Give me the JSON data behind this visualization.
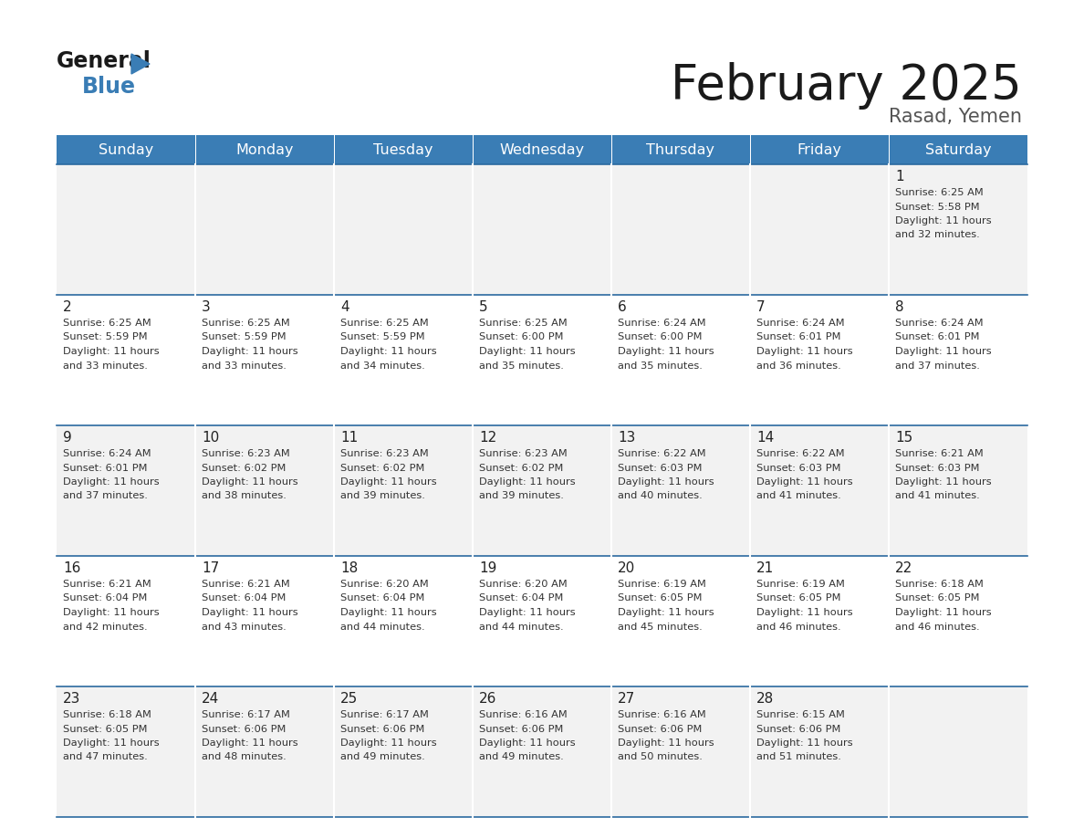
{
  "title": "February 2025",
  "subtitle": "Rasad, Yemen",
  "days_of_week": [
    "Sunday",
    "Monday",
    "Tuesday",
    "Wednesday",
    "Thursday",
    "Friday",
    "Saturday"
  ],
  "header_bg": "#3A7DB5",
  "header_text_color": "#FFFFFF",
  "border_color": "#2B6AA0",
  "day_number_color": "#222222",
  "info_text_color": "#333333",
  "title_color": "#1A1A1A",
  "subtitle_color": "#555555",
  "calendar": [
    [
      null,
      null,
      null,
      null,
      null,
      null,
      1
    ],
    [
      2,
      3,
      4,
      5,
      6,
      7,
      8
    ],
    [
      9,
      10,
      11,
      12,
      13,
      14,
      15
    ],
    [
      16,
      17,
      18,
      19,
      20,
      21,
      22
    ],
    [
      23,
      24,
      25,
      26,
      27,
      28,
      null
    ]
  ],
  "sun_data": {
    "1": {
      "rise": "6:25 AM",
      "set": "5:58 PM",
      "daylight_h": "11",
      "daylight_m": "32"
    },
    "2": {
      "rise": "6:25 AM",
      "set": "5:59 PM",
      "daylight_h": "11",
      "daylight_m": "33"
    },
    "3": {
      "rise": "6:25 AM",
      "set": "5:59 PM",
      "daylight_h": "11",
      "daylight_m": "33"
    },
    "4": {
      "rise": "6:25 AM",
      "set": "5:59 PM",
      "daylight_h": "11",
      "daylight_m": "34"
    },
    "5": {
      "rise": "6:25 AM",
      "set": "6:00 PM",
      "daylight_h": "11",
      "daylight_m": "35"
    },
    "6": {
      "rise": "6:24 AM",
      "set": "6:00 PM",
      "daylight_h": "11",
      "daylight_m": "35"
    },
    "7": {
      "rise": "6:24 AM",
      "set": "6:01 PM",
      "daylight_h": "11",
      "daylight_m": "36"
    },
    "8": {
      "rise": "6:24 AM",
      "set": "6:01 PM",
      "daylight_h": "11",
      "daylight_m": "37"
    },
    "9": {
      "rise": "6:24 AM",
      "set": "6:01 PM",
      "daylight_h": "11",
      "daylight_m": "37"
    },
    "10": {
      "rise": "6:23 AM",
      "set": "6:02 PM",
      "daylight_h": "11",
      "daylight_m": "38"
    },
    "11": {
      "rise": "6:23 AM",
      "set": "6:02 PM",
      "daylight_h": "11",
      "daylight_m": "39"
    },
    "12": {
      "rise": "6:23 AM",
      "set": "6:02 PM",
      "daylight_h": "11",
      "daylight_m": "39"
    },
    "13": {
      "rise": "6:22 AM",
      "set": "6:03 PM",
      "daylight_h": "11",
      "daylight_m": "40"
    },
    "14": {
      "rise": "6:22 AM",
      "set": "6:03 PM",
      "daylight_h": "11",
      "daylight_m": "41"
    },
    "15": {
      "rise": "6:21 AM",
      "set": "6:03 PM",
      "daylight_h": "11",
      "daylight_m": "41"
    },
    "16": {
      "rise": "6:21 AM",
      "set": "6:04 PM",
      "daylight_h": "11",
      "daylight_m": "42"
    },
    "17": {
      "rise": "6:21 AM",
      "set": "6:04 PM",
      "daylight_h": "11",
      "daylight_m": "43"
    },
    "18": {
      "rise": "6:20 AM",
      "set": "6:04 PM",
      "daylight_h": "11",
      "daylight_m": "44"
    },
    "19": {
      "rise": "6:20 AM",
      "set": "6:04 PM",
      "daylight_h": "11",
      "daylight_m": "44"
    },
    "20": {
      "rise": "6:19 AM",
      "set": "6:05 PM",
      "daylight_h": "11",
      "daylight_m": "45"
    },
    "21": {
      "rise": "6:19 AM",
      "set": "6:05 PM",
      "daylight_h": "11",
      "daylight_m": "46"
    },
    "22": {
      "rise": "6:18 AM",
      "set": "6:05 PM",
      "daylight_h": "11",
      "daylight_m": "46"
    },
    "23": {
      "rise": "6:18 AM",
      "set": "6:05 PM",
      "daylight_h": "11",
      "daylight_m": "47"
    },
    "24": {
      "rise": "6:17 AM",
      "set": "6:06 PM",
      "daylight_h": "11",
      "daylight_m": "48"
    },
    "25": {
      "rise": "6:17 AM",
      "set": "6:06 PM",
      "daylight_h": "11",
      "daylight_m": "49"
    },
    "26": {
      "rise": "6:16 AM",
      "set": "6:06 PM",
      "daylight_h": "11",
      "daylight_m": "49"
    },
    "27": {
      "rise": "6:16 AM",
      "set": "6:06 PM",
      "daylight_h": "11",
      "daylight_m": "50"
    },
    "28": {
      "rise": "6:15 AM",
      "set": "6:06 PM",
      "daylight_h": "11",
      "daylight_m": "51"
    }
  }
}
